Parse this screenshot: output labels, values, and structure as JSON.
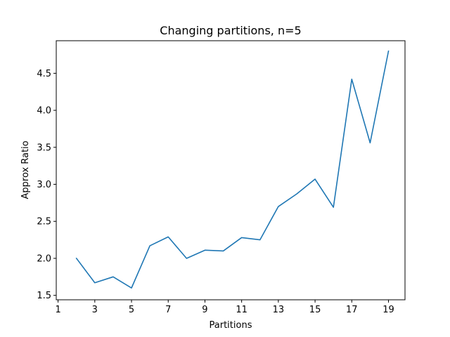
{
  "chart_data": {
    "type": "line",
    "title": "Changing partitions, n=5",
    "xlabel": "Partitions",
    "ylabel": "Approx Ratio",
    "xlim": [
      0.9,
      19.9
    ],
    "ylim": [
      1.44,
      4.94
    ],
    "xticks": [
      1,
      3,
      5,
      7,
      9,
      11,
      13,
      15,
      17,
      19
    ],
    "yticks": [
      1.5,
      2.0,
      2.5,
      3.0,
      3.5,
      4.0,
      4.5
    ],
    "ytick_labels": [
      "1.5",
      "2.0",
      "2.5",
      "3.0",
      "3.5",
      "4.0",
      "4.5"
    ],
    "grid": false,
    "series": [
      {
        "color": "#1f77b4",
        "x": [
          2,
          3,
          4,
          5,
          6,
          7,
          8,
          9,
          10,
          11,
          12,
          13,
          14,
          15,
          16,
          17,
          18,
          19
        ],
        "values": [
          2.0,
          1.67,
          1.75,
          1.6,
          2.17,
          2.29,
          2.0,
          2.11,
          2.1,
          2.28,
          2.25,
          2.7,
          2.87,
          3.07,
          2.69,
          4.42,
          3.56,
          4.8
        ]
      }
    ]
  }
}
